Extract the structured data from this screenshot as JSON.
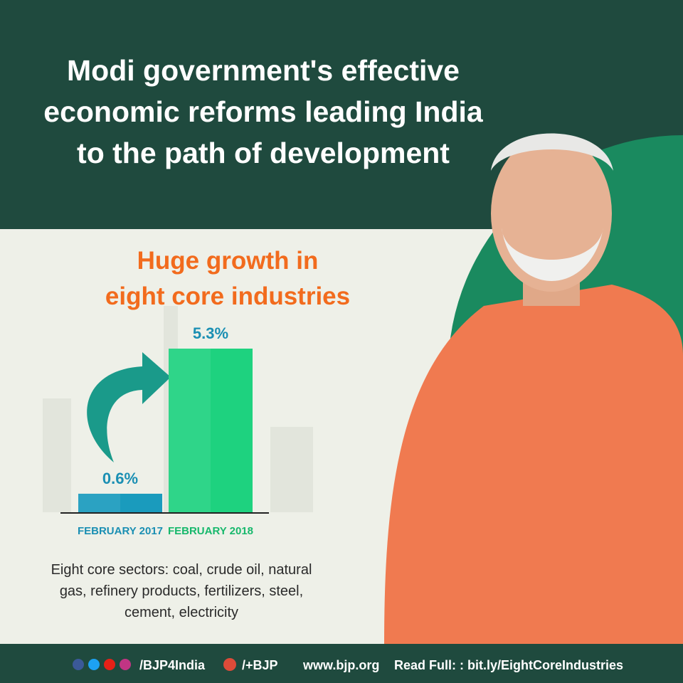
{
  "header": {
    "title_lines": [
      "Modi government's effective",
      "economic reforms leading India",
      "to the path of development"
    ]
  },
  "chart_data": {
    "type": "bar",
    "title_lines": [
      "Huge growth in",
      "eight core industries"
    ],
    "categories": [
      "FEBRUARY 2017",
      "FEBRUARY 2018"
    ],
    "values": [
      0.6,
      5.3
    ],
    "value_labels": [
      "0.6%",
      "5.3%"
    ],
    "colors": [
      "#1a9bbd",
      "#1ed27f"
    ],
    "category_colors": [
      "#1a8fb3",
      "#17b86c"
    ]
  },
  "note": "Eight core sectors: coal, crude oil, natural gas, refinery products, fertilizers, steel, cement, electricity",
  "footer": {
    "social": "/BJP4India",
    "gplus": "/+BJP",
    "website": "www.bjp.org",
    "read_full": "Read Full: : bit.ly/EightCoreIndustries"
  }
}
